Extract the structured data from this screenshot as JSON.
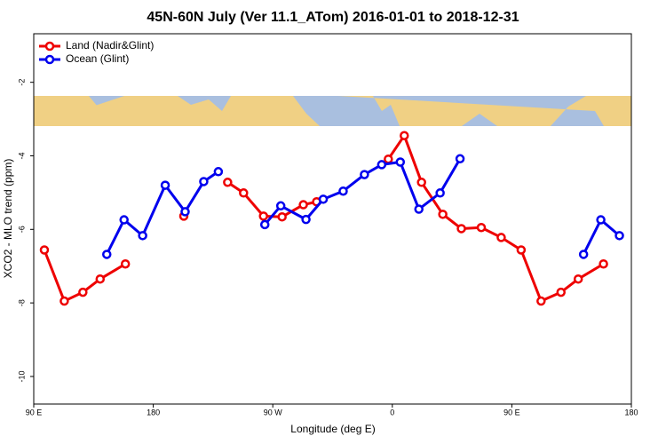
{
  "chart_data": {
    "type": "line",
    "title": "45N-60N July (Ver 11.1_ATom)   2016-01-01 to 2018-12-31",
    "x_label": "Longitude (deg E)",
    "y_label": "XCO2 - MLO trend (ppm)",
    "xlim": [
      90,
      540
    ],
    "ylim": [
      -10.75,
      -0.68
    ],
    "xticks": [
      {
        "value": 90,
        "label": "90 E"
      },
      {
        "value": 180,
        "label": "180"
      },
      {
        "value": 270,
        "label": "90 W"
      },
      {
        "value": 360,
        "label": "0"
      },
      {
        "value": 450,
        "label": "90 E"
      },
      {
        "value": 540,
        "label": "180"
      }
    ],
    "yticks": [
      -10,
      -8,
      -6,
      -4,
      -2
    ],
    "legend": "top-left",
    "series": [
      {
        "name": "Land (Nadir&Glint)",
        "color": "#ee0000",
        "x": [
          98,
          113,
          127,
          140,
          159,
          null,
          203,
          null,
          236,
          248,
          263,
          277,
          293,
          303,
          null,
          357,
          369,
          382,
          398,
          412,
          427,
          442,
          457,
          472,
          487,
          500,
          519
        ],
        "values": [
          -6.56,
          -7.95,
          -7.71,
          -7.35,
          -6.94,
          null,
          -5.64,
          null,
          -4.72,
          -5.01,
          -5.64,
          -5.66,
          -5.33,
          -5.25,
          null,
          -4.09,
          -3.45,
          -4.72,
          -5.59,
          -5.98,
          -5.95,
          -6.22,
          -6.56,
          -7.95,
          -7.71,
          -7.35,
          -6.94
        ]
      },
      {
        "name": "Ocean (Glint)",
        "color": "#0000ee",
        "x": [
          145,
          158,
          172,
          189,
          204,
          218,
          229,
          null,
          264,
          276,
          295,
          308,
          323,
          339,
          352,
          366,
          380,
          396,
          411,
          null,
          504,
          517,
          531
        ],
        "values": [
          -6.68,
          -5.74,
          -6.17,
          -4.8,
          -5.52,
          -4.7,
          -4.43,
          null,
          -5.87,
          -5.36,
          -5.73,
          -5.18,
          -4.96,
          -4.51,
          -4.24,
          -4.17,
          -5.45,
          -5.01,
          -4.08,
          null,
          -6.68,
          -5.74,
          -6.17
        ]
      }
    ]
  }
}
